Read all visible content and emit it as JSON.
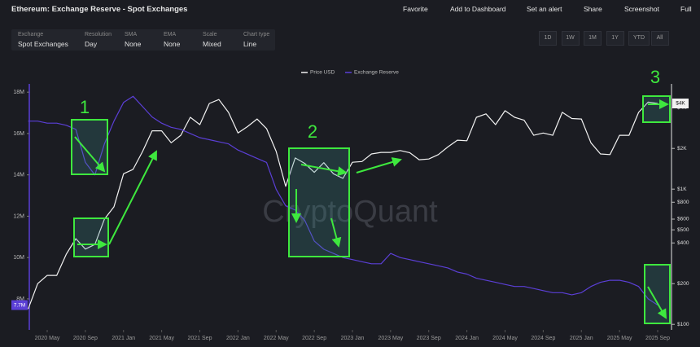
{
  "header": {
    "title": "Ethereum: Exchange Reserve - Spot Exchanges",
    "actions": [
      "Favorite",
      "Add to Dashboard",
      "Set an alert",
      "Share",
      "Screenshot",
      "Full"
    ]
  },
  "controls": [
    {
      "label": "Exchange",
      "value": "Spot Exchanges"
    },
    {
      "label": "Resolution",
      "value": "Day"
    },
    {
      "label": "SMA",
      "value": "None"
    },
    {
      "label": "EMA",
      "value": "None"
    },
    {
      "label": "Scale",
      "value": "Mixed"
    },
    {
      "label": "Chart type",
      "value": "Line"
    }
  ],
  "ranges": [
    "1D",
    "1W",
    "1M",
    "1Y",
    "YTD",
    "All"
  ],
  "chart_data": {
    "type": "line",
    "watermark": "CryptoQuant",
    "x": [
      "2020-03",
      "2020-04",
      "2020-05",
      "2020-06",
      "2020-07",
      "2020-08",
      "2020-09",
      "2020-10",
      "2020-11",
      "2020-12",
      "2021-01",
      "2021-02",
      "2021-03",
      "2021-04",
      "2021-05",
      "2021-06",
      "2021-07",
      "2021-08",
      "2021-09",
      "2021-10",
      "2021-11",
      "2021-12",
      "2022-01",
      "2022-02",
      "2022-03",
      "2022-04",
      "2022-05",
      "2022-06",
      "2022-07",
      "2022-08",
      "2022-09",
      "2022-10",
      "2022-11",
      "2022-12",
      "2023-01",
      "2023-02",
      "2023-03",
      "2023-04",
      "2023-05",
      "2023-06",
      "2023-07",
      "2023-08",
      "2023-09",
      "2023-10",
      "2023-11",
      "2023-12",
      "2024-01",
      "2024-02",
      "2024-03",
      "2024-04",
      "2024-05",
      "2024-06",
      "2024-07",
      "2024-08",
      "2024-09",
      "2024-10",
      "2024-11",
      "2024-12",
      "2025-01",
      "2025-02",
      "2025-03",
      "2025-04",
      "2025-05",
      "2025-06",
      "2025-07",
      "2025-08",
      "2025-09"
    ],
    "series": [
      {
        "name": "Price USD",
        "color": "#f2f2f2",
        "axis": "y2",
        "end_label": "$4K",
        "values": [
          130,
          200,
          230,
          230,
          330,
          430,
          360,
          390,
          600,
          740,
          1300,
          1400,
          1900,
          2700,
          2700,
          2200,
          2500,
          3400,
          3000,
          4300,
          4600,
          3700,
          2600,
          2900,
          3300,
          2800,
          1900,
          1050,
          1700,
          1550,
          1330,
          1570,
          1300,
          1200,
          1580,
          1600,
          1820,
          1870,
          1870,
          1930,
          1860,
          1650,
          1670,
          1800,
          2050,
          2300,
          2280,
          3400,
          3600,
          3000,
          3800,
          3400,
          3230,
          2500,
          2600,
          2500,
          3700,
          3330,
          3300,
          2200,
          1820,
          1800,
          2500,
          2500,
          3700,
          4400,
          4300
        ]
      },
      {
        "name": "Exchange Reserve",
        "color": "#5b3fd6",
        "axis": "y",
        "end_label": "7.7M",
        "values": [
          16600000,
          16600000,
          16500000,
          16500000,
          16400000,
          16200000,
          14600000,
          14000000,
          15500000,
          16600000,
          17500000,
          17800000,
          17300000,
          16800000,
          16500000,
          16300000,
          16200000,
          16000000,
          15800000,
          15700000,
          15600000,
          15500000,
          15200000,
          15000000,
          14800000,
          14600000,
          13300000,
          12500000,
          12300000,
          11800000,
          10800000,
          10400000,
          10200000,
          10000000,
          9900000,
          9800000,
          9700000,
          9700000,
          10200000,
          10000000,
          9900000,
          9800000,
          9700000,
          9600000,
          9500000,
          9300000,
          9200000,
          9000000,
          8900000,
          8800000,
          8700000,
          8600000,
          8600000,
          8500000,
          8400000,
          8300000,
          8300000,
          8200000,
          8300000,
          8600000,
          8800000,
          8900000,
          8900000,
          8800000,
          8600000,
          8000000,
          7700000
        ]
      }
    ],
    "xticks": [
      {
        "value": "2020-05",
        "label": "2020 May"
      },
      {
        "value": "2020-09",
        "label": "2020 Sep"
      },
      {
        "value": "2021-01",
        "label": "2021 Jan"
      },
      {
        "value": "2021-05",
        "label": "2021 May"
      },
      {
        "value": "2021-09",
        "label": "2021 Sep"
      },
      {
        "value": "2022-01",
        "label": "2022 Jan"
      },
      {
        "value": "2022-05",
        "label": "2022 May"
      },
      {
        "value": "2022-09",
        "label": "2022 Sep"
      },
      {
        "value": "2023-01",
        "label": "2023 Jan"
      },
      {
        "value": "2023-05",
        "label": "2023 May"
      },
      {
        "value": "2023-09",
        "label": "2023 Sep"
      },
      {
        "value": "2024-01",
        "label": "2024 Jan"
      },
      {
        "value": "2024-05",
        "label": "2024 May"
      },
      {
        "value": "2024-09",
        "label": "2024 Sep"
      },
      {
        "value": "2025-01",
        "label": "2025 Jan"
      },
      {
        "value": "2025-05",
        "label": "2025 May"
      },
      {
        "value": "2025-09",
        "label": "2025 Sep"
      }
    ],
    "ylim": [
      6500000,
      18400000
    ],
    "yticks": [
      {
        "value": 8000000,
        "label": "8M"
      },
      {
        "value": 10000000,
        "label": "10M"
      },
      {
        "value": 12000000,
        "label": "12M"
      },
      {
        "value": 14000000,
        "label": "14M"
      },
      {
        "value": 16000000,
        "label": "16M"
      },
      {
        "value": 18000000,
        "label": "18M"
      }
    ],
    "y2scale": "log",
    "y2lim": [
      91,
      6000
    ],
    "y2ticks": [
      {
        "value": 100,
        "label": "$100"
      },
      {
        "value": 200,
        "label": "$200"
      },
      {
        "value": 400,
        "label": "$400"
      },
      {
        "value": 500,
        "label": "$500"
      },
      {
        "value": 600,
        "label": "$600"
      },
      {
        "value": 800,
        "label": "$800"
      },
      {
        "value": 1000,
        "label": "$1K"
      },
      {
        "value": 2000,
        "label": "$2K"
      },
      {
        "value": 4000,
        "label": "$4K"
      }
    ],
    "grid": false,
    "annotations": [
      "1",
      "2",
      "3"
    ]
  }
}
